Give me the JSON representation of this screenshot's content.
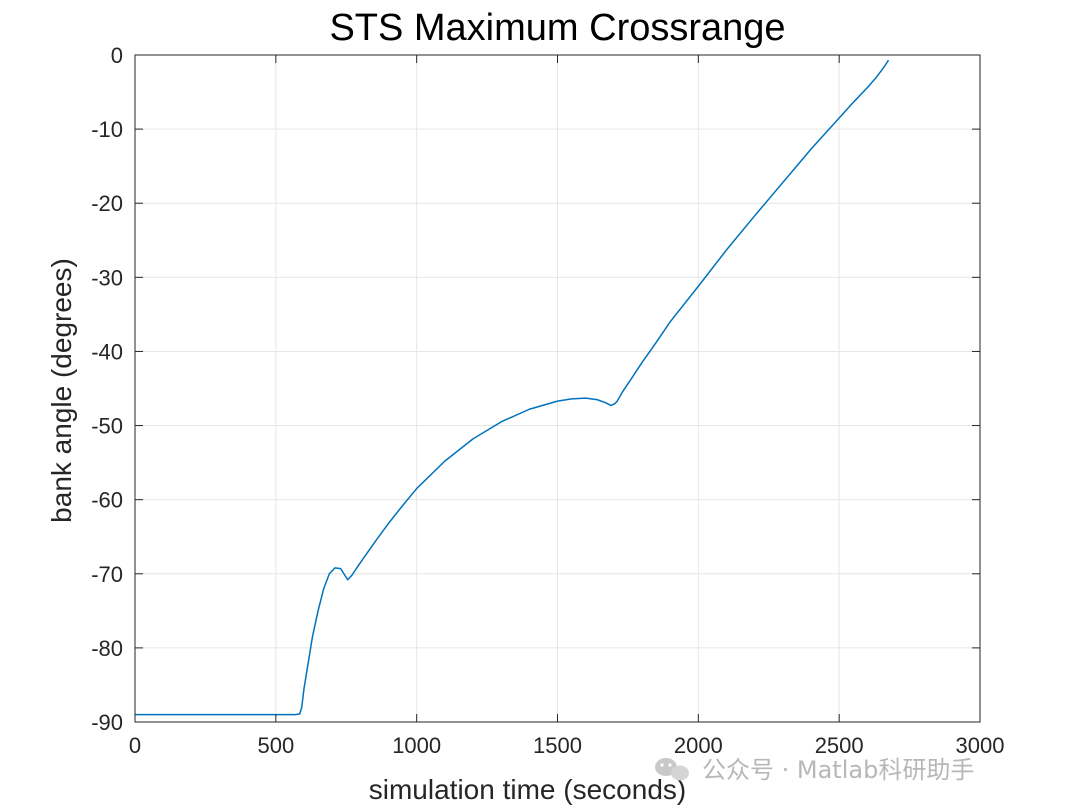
{
  "chart_data": {
    "type": "line",
    "title": "STS Maximum Crossrange",
    "xlabel": "simulation time (seconds)",
    "ylabel": "bank angle (degrees)",
    "xlim": [
      0,
      3000
    ],
    "ylim": [
      -90,
      0
    ],
    "xticks": [
      0,
      500,
      1000,
      1500,
      2000,
      2500,
      3000
    ],
    "yticks": [
      0,
      -10,
      -20,
      -30,
      -40,
      -50,
      -60,
      -70,
      -80,
      -90
    ],
    "grid": true,
    "colors": {
      "line": "#0072BD",
      "grid": "#e6e6e6",
      "axis": "#262626"
    },
    "series": [
      {
        "x": [
          0,
          100,
          200,
          300,
          400,
          500,
          570,
          585,
          592,
          600,
          615,
          630,
          650,
          670,
          690,
          710,
          730,
          745,
          755,
          770,
          800,
          850,
          900,
          950,
          1000,
          1100,
          1200,
          1300,
          1400,
          1500,
          1550,
          1600,
          1640,
          1670,
          1690,
          1705,
          1712,
          1730,
          1760,
          1800,
          1850,
          1900,
          2000,
          2100,
          2200,
          2300,
          2400,
          2500,
          2550,
          2600,
          2630,
          2650,
          2665,
          2675
        ],
        "y": [
          -89,
          -89,
          -89,
          -89,
          -89,
          -89,
          -89,
          -88.9,
          -88,
          -85.5,
          -82,
          -78.5,
          -75,
          -72,
          -70,
          -69.2,
          -69.3,
          -70.2,
          -70.8,
          -70.2,
          -68.5,
          -65.8,
          -63.2,
          -60.8,
          -58.5,
          -54.8,
          -51.8,
          -49.5,
          -47.8,
          -46.7,
          -46.4,
          -46.3,
          -46.5,
          -46.9,
          -47.3,
          -47.0,
          -46.7,
          -45.5,
          -43.8,
          -41.5,
          -38.8,
          -36.0,
          -31.2,
          -26.3,
          -21.7,
          -17.2,
          -12.7,
          -8.5,
          -6.4,
          -4.4,
          -3.1,
          -2.1,
          -1.3,
          -0.7
        ]
      }
    ]
  },
  "watermark": {
    "icon": "wechat-icon",
    "text": "公众号 · Matlab科研助手"
  }
}
